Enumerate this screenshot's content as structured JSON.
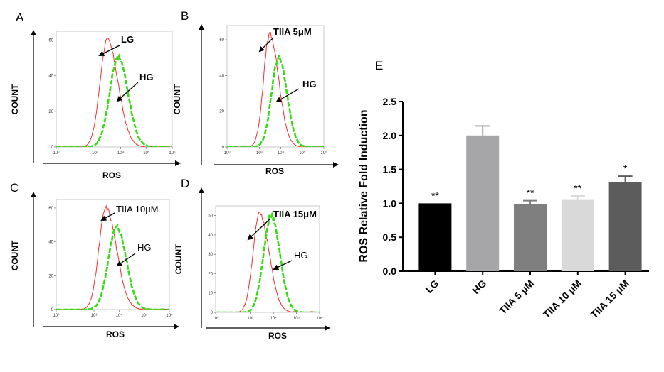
{
  "chart_data": [
    {
      "panel": "A",
      "type": "line",
      "xlabel": "ROS",
      "ylabel": "COUNT",
      "xlim": [
        0,
        1000000
      ],
      "x_scale": "log",
      "ylim": [
        0,
        65
      ],
      "yticks": [
        0,
        20,
        40,
        60
      ],
      "xticks": [
        "10⁰",
        "10³",
        "10⁴",
        "10⁵",
        "10⁶"
      ],
      "annotations": [
        {
          "text": "LG"
        },
        {
          "text": "HG"
        }
      ],
      "series": [
        {
          "color": "#ff2a2a",
          "style": "solid",
          "peak_x": 3000,
          "peak_y": 60
        },
        {
          "color": "#33dd11",
          "style": "dashed",
          "peak_x": 8000,
          "peak_y": 50
        }
      ]
    },
    {
      "panel": "B",
      "type": "line",
      "xlabel": "ROS",
      "ylabel": "COUNT",
      "xlim": [
        0,
        1000000
      ],
      "x_scale": "log",
      "ylim": [
        0,
        68
      ],
      "yticks": [
        0,
        20,
        40,
        60
      ],
      "xticks": [
        "10⁰",
        "10³",
        "10⁴",
        "10⁵",
        "10⁶"
      ],
      "annotations": [
        {
          "text": "TIIA 5μM"
        },
        {
          "text": "HG"
        }
      ],
      "series": [
        {
          "color": "#ff2a2a",
          "style": "solid",
          "peak_x": 3000,
          "peak_y": 63
        },
        {
          "color": "#33dd11",
          "style": "dashed",
          "peak_x": 8000,
          "peak_y": 50
        }
      ]
    },
    {
      "panel": "C",
      "type": "line",
      "xlabel": "ROS",
      "ylabel": "COUNT",
      "xlim": [
        0,
        1000000
      ],
      "x_scale": "log",
      "ylim": [
        0,
        65
      ],
      "yticks": [
        0,
        20,
        40,
        60
      ],
      "xticks": [
        "10⁰",
        "10³",
        "10⁴",
        "10⁵",
        "10⁶"
      ],
      "annotations": [
        {
          "text": "TIIA 10μM"
        },
        {
          "text": "HG"
        }
      ],
      "series": [
        {
          "color": "#ff2a2a",
          "style": "solid",
          "peak_x": 3000,
          "peak_y": 60
        },
        {
          "color": "#33dd11",
          "style": "dashed",
          "peak_x": 8000,
          "peak_y": 49
        }
      ]
    },
    {
      "panel": "D",
      "type": "line",
      "xlabel": "ROS",
      "ylabel": "COUNT",
      "xlim": [
        0,
        1000000
      ],
      "x_scale": "log",
      "ylim": [
        0,
        55
      ],
      "yticks": [
        0,
        10,
        20,
        30,
        40,
        50
      ],
      "xticks": [
        "10⁰",
        "10³",
        "10⁴",
        "10⁵",
        "10⁶"
      ],
      "annotations": [
        {
          "text": "TIIA 15μM"
        },
        {
          "text": "HG"
        }
      ],
      "series": [
        {
          "color": "#ff2a2a",
          "style": "solid",
          "peak_x": 2500,
          "peak_y": 51
        },
        {
          "color": "#33dd11",
          "style": "dashed",
          "peak_x": 8000,
          "peak_y": 50
        }
      ]
    },
    {
      "panel": "E",
      "type": "bar",
      "ylabel": "ROS Relative Fold Induction",
      "categories": [
        "LG",
        "HG",
        "TIIA 5 μM",
        "TIIA 10 μM",
        "TIIA 15 μM"
      ],
      "values": [
        1.0,
        2.0,
        0.99,
        1.05,
        1.31
      ],
      "errors": [
        0.0,
        0.14,
        0.05,
        0.06,
        0.09
      ],
      "significance": [
        "**",
        "",
        "**",
        "**",
        "*"
      ],
      "colors": [
        "#000000",
        "#a6a6a8",
        "#7f7f7f",
        "#d9d9d9",
        "#5c5c5c"
      ],
      "ylim": [
        0,
        2.5
      ],
      "yticks": [
        "0.0",
        "0.5",
        "1.0",
        "1.5",
        "2.0",
        "2.5"
      ]
    }
  ]
}
